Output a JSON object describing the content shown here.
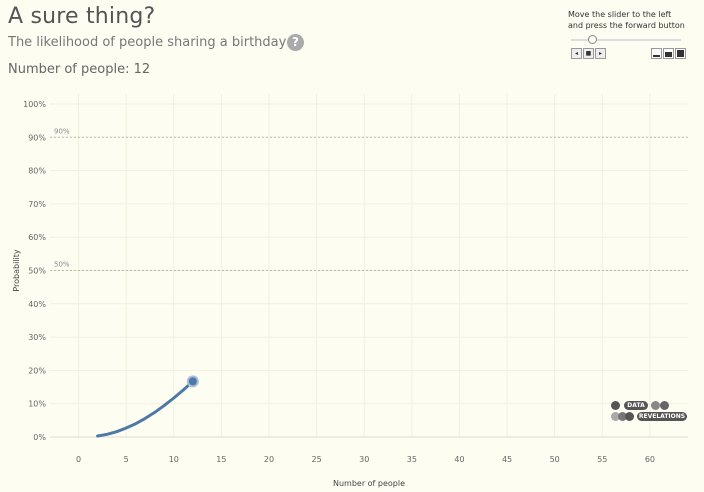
{
  "header": {
    "title": "A sure thing?",
    "subtitle": "The likelihood of people sharing a birthday",
    "help_glyph": "?",
    "count_label": "Number of people: 12"
  },
  "controls": {
    "instructions_line1": "Move the slider to the left",
    "instructions_line2": "and press the forward button",
    "slider_value": 12,
    "back_glyph": "◂",
    "stop_glyph": "■",
    "forward_glyph": "▸"
  },
  "logo": {
    "line1": "DATA",
    "line2": "REVELATIONS"
  },
  "chart_data": {
    "type": "line",
    "xlabel": "Number of people",
    "ylabel": "Probability",
    "xlim": [
      -3,
      64
    ],
    "ylim": [
      0,
      100
    ],
    "x_ticks": [
      0,
      5,
      10,
      15,
      20,
      25,
      30,
      35,
      40,
      45,
      50,
      55,
      60
    ],
    "y_ticks": [
      0,
      10,
      20,
      30,
      40,
      50,
      60,
      70,
      80,
      90,
      100
    ],
    "y_tick_labels": [
      "0%",
      "10%",
      "20%",
      "30%",
      "40%",
      "50%",
      "60%",
      "70%",
      "80%",
      "90%",
      "100%"
    ],
    "grid": true,
    "reference_lines": [
      {
        "value": 90,
        "label": "90%"
      },
      {
        "value": 50,
        "label": "50%"
      }
    ],
    "series": [
      {
        "color": "#4e79a7",
        "x": [
          2,
          3,
          4,
          5,
          6,
          7,
          8,
          9,
          10,
          11,
          12
        ],
        "y": [
          0.3,
          0.8,
          1.6,
          2.7,
          4.0,
          5.6,
          7.4,
          9.5,
          11.7,
          14.1,
          16.7
        ]
      }
    ],
    "highlight_point": {
      "x": 12,
      "y": 16.7
    }
  }
}
